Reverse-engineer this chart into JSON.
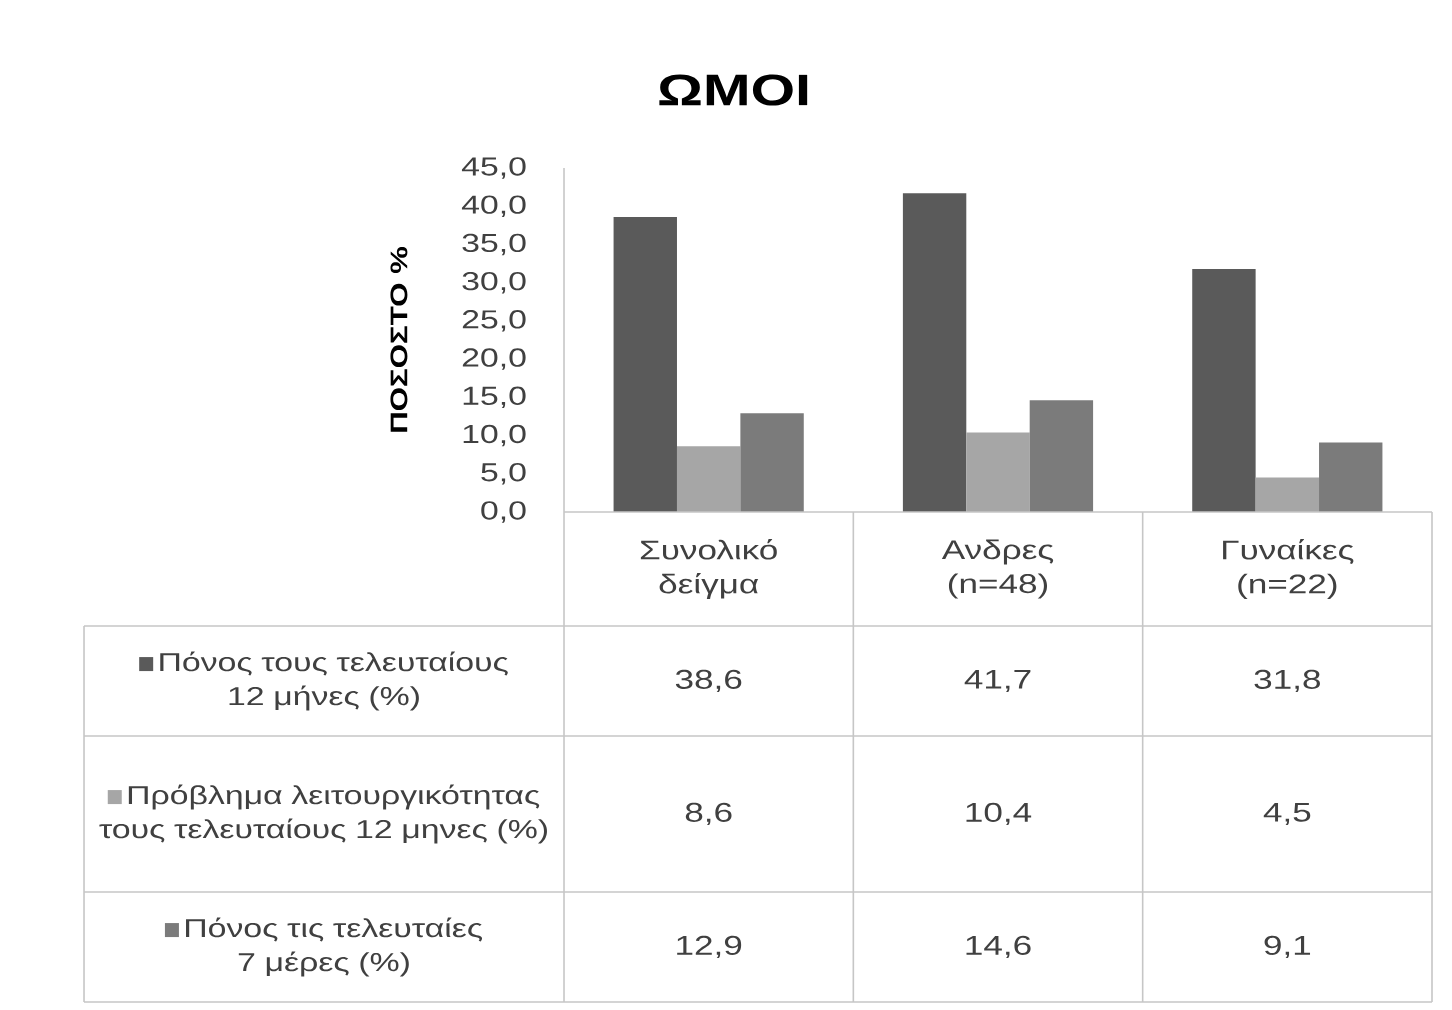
{
  "chart_data": {
    "type": "bar",
    "title": "ΩΜΟΙ",
    "ylabel": "ΠΟΣΟΣΤΟ %",
    "categories": [
      "Συνολικό δείγμα",
      "Ανδρες (n=48)",
      "Γυναίκες (n=22)"
    ],
    "series": [
      {
        "name": "Πόνος τους τελευταίους 12 μήνες (%)",
        "color": "#5a5a5a",
        "values": [
          38.6,
          41.7,
          31.8
        ],
        "value_labels": [
          "38,6",
          "41,7",
          "31,8"
        ]
      },
      {
        "name": "Πρόβλημα λειτουργικότητας τους τελευταίους 12 μηνες (%)",
        "color": "#a6a6a6",
        "values": [
          8.6,
          10.4,
          4.5
        ],
        "value_labels": [
          "8,6",
          "10,4",
          "4,5"
        ]
      },
      {
        "name": "Πόνος τις τελευταίες 7 μέρες (%)",
        "color": "#7b7b7b",
        "values": [
          12.9,
          14.6,
          9.1
        ],
        "value_labels": [
          "12,9",
          "14,6",
          "9,1"
        ]
      }
    ],
    "ylim": [
      0,
      45
    ],
    "yticks": [
      {
        "value": 0,
        "label": "0,0"
      },
      {
        "value": 5,
        "label": "5,0"
      },
      {
        "value": 10,
        "label": "10,0"
      },
      {
        "value": 15,
        "label": "15,0"
      },
      {
        "value": 20,
        "label": "20,0"
      },
      {
        "value": 25,
        "label": "25,0"
      },
      {
        "value": 30,
        "label": "30,0"
      },
      {
        "value": 35,
        "label": "35,0"
      },
      {
        "value": 40,
        "label": "40,0"
      },
      {
        "value": 45,
        "label": "45,0"
      }
    ],
    "legend": "bottom"
  }
}
